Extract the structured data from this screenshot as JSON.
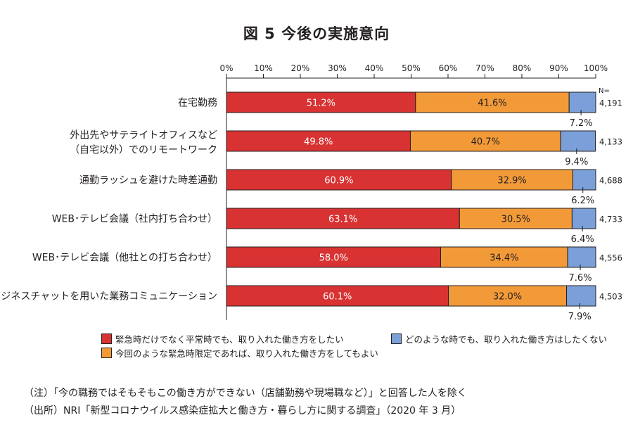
{
  "chart_data": {
    "type": "bar",
    "orientation": "horizontal",
    "stacked": true,
    "title": "図 5 今後の実施意向",
    "xlabel": "",
    "ylabel": "",
    "xlim": [
      0,
      100
    ],
    "x_tick_labels": [
      "0%",
      "10%",
      "20%",
      "30%",
      "40%",
      "50%",
      "60%",
      "70%",
      "80%",
      "90%",
      "100%"
    ],
    "categories": [
      [
        "在宅勤務"
      ],
      [
        "外出先やサテライトオフィスなど",
        "（自宅以外）でのリモートワーク"
      ],
      [
        "通勤ラッシュを避けた時差通勤"
      ],
      [
        "WEB･テレビ会議（社内打ち合わせ）"
      ],
      [
        "WEB･テレビ会議（他社との打ち合わせ）"
      ],
      [
        "ビジネスチャットを用いた業務コミュニケーション"
      ]
    ],
    "series": [
      {
        "name": "緊急時だけでなく平常時でも、取り入れた働き方をしたい",
        "color": "#d83232",
        "values": [
          51.2,
          49.8,
          60.9,
          63.1,
          58.0,
          60.1
        ]
      },
      {
        "name": "今回のような緊急時限定であれば、取り入れた働き方をしてもよい",
        "color": "#f39a38",
        "values": [
          41.6,
          40.7,
          32.9,
          30.5,
          34.4,
          32.0
        ]
      },
      {
        "name": "どのような時でも、取り入れた働き方はしたくない",
        "color": "#7b9fd8",
        "values": [
          7.2,
          9.4,
          6.2,
          6.4,
          7.6,
          7.9
        ]
      }
    ],
    "value_labels": [
      [
        "51.2%",
        "41.6%",
        "7.2%"
      ],
      [
        "49.8%",
        "40.7%",
        "9.4%"
      ],
      [
        "60.9%",
        "32.9%",
        "6.2%"
      ],
      [
        "63.1%",
        "30.5%",
        "6.4%"
      ],
      [
        "58.0%",
        "34.4%",
        "7.6%"
      ],
      [
        "60.1%",
        "32.0%",
        "7.9%"
      ]
    ],
    "n_header": "N=",
    "n_values": [
      "4,191",
      "4,133",
      "4,688",
      "4,733",
      "4,556",
      "4,503"
    ],
    "grid": false,
    "legend_position": "bottom"
  },
  "legend": [
    {
      "label": "緊急時だけでなく平常時でも、取り入れた働き方をしたい",
      "color": "#d83232"
    },
    {
      "label": "どのような時でも、取り入れた働き方はしたくない",
      "color": "#7b9fd8"
    },
    {
      "label": "今回のような緊急時限定であれば、取り入れた働き方をしてもよい",
      "color": "#f39a38"
    }
  ],
  "notes": {
    "note": "（注）「今の職務ではそもそもこの働き方ができない（店舗勤務や現場職など）」と回答した人を除く",
    "source": "（出所）NRI「新型コロナウイルス感染症拡大と働き方・暮らし方に関する調査」（2020 年 3 月）"
  }
}
